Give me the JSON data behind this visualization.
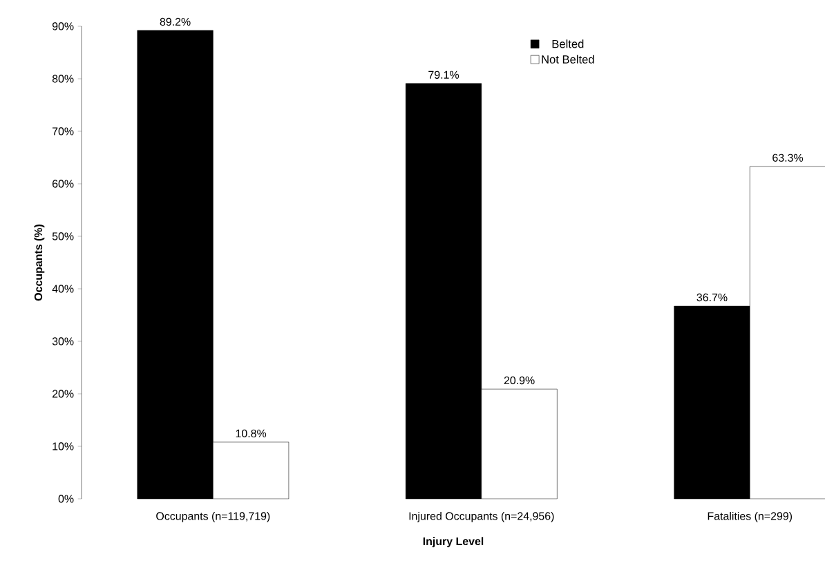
{
  "chart_data": {
    "type": "bar",
    "xlabel": "Injury Level",
    "ylabel": "Occupants (%)",
    "categories": [
      "Occupants (n=119,719)",
      "Injured Occupants (n=24,956)",
      "Fatalities (n=299)"
    ],
    "series": [
      {
        "name": "Belted",
        "color": "#000000",
        "values": [
          89.2,
          79.1,
          36.7
        ],
        "value_labels": [
          "89.2%",
          "79.1%",
          "36.7%"
        ]
      },
      {
        "name": "Not Belted",
        "color": "#ffffff",
        "values": [
          10.8,
          20.9,
          63.3
        ],
        "value_labels": [
          "10.8%",
          "20.9%",
          "63.3%"
        ]
      }
    ],
    "ylim": [
      0,
      90
    ],
    "yticks": [
      {
        "value": 0,
        "label": "0%"
      },
      {
        "value": 10,
        "label": "10%"
      },
      {
        "value": 20,
        "label": "20%"
      },
      {
        "value": 30,
        "label": "30%"
      },
      {
        "value": 40,
        "label": "40%"
      },
      {
        "value": 50,
        "label": "50%"
      },
      {
        "value": 60,
        "label": "60%"
      },
      {
        "value": 70,
        "label": "70%"
      },
      {
        "value": 80,
        "label": "80%"
      },
      {
        "value": 90,
        "label": "90%"
      }
    ],
    "legend": "top right"
  }
}
